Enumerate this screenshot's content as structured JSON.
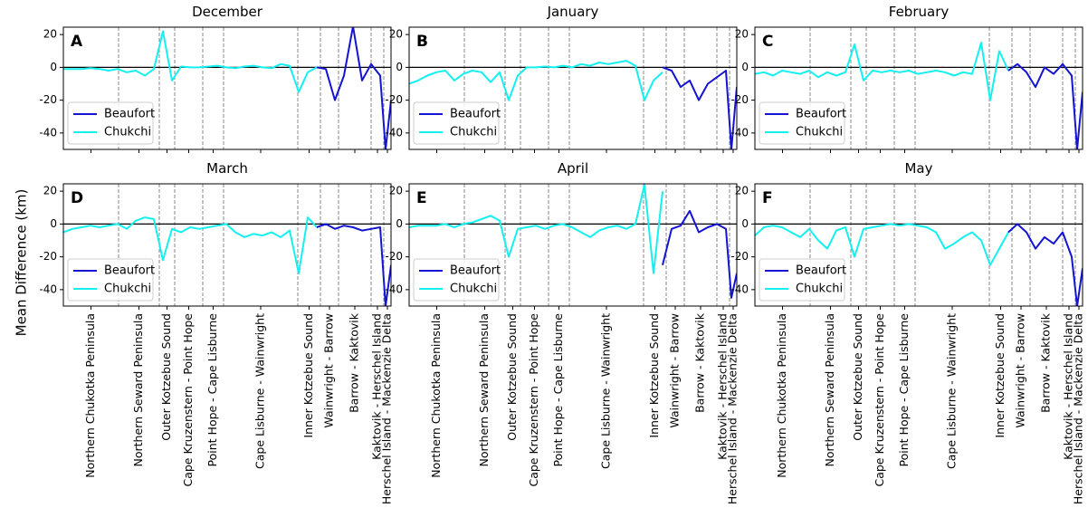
{
  "figure": {
    "ylabel": "Mean Difference (km)"
  },
  "axes": {
    "xlim": [
      0,
      362
    ],
    "ylim": [
      -50,
      24.5
    ],
    "yticks": [
      -40,
      -20,
      0,
      20
    ],
    "hline": 0,
    "boundaries": [
      0,
      61,
      106,
      123,
      154,
      177,
      259,
      284,
      304,
      340,
      354,
      362
    ],
    "regions": [
      "Northern Chukotka Peninsula",
      "Northern Seward Peninsula",
      "Outer Kotzebue Sound",
      "Cape Kruzenstern - Point Hope",
      "Point Hope - Cape Lisburne",
      "Cape Lisburne - Wainwright",
      "Inner Kotzebue Sound",
      "Wainwright - Barrow",
      "Barrow - Kaktovik",
      "Kaktovik - Herschel Island",
      "Herschel Island - Mackenzie Delta"
    ]
  },
  "chart_data": [
    {
      "type": "line",
      "title": "December",
      "label": "A",
      "series": [
        {
          "name": "Beaufort",
          "color": "#1414d2",
          "x": [
            280,
            290,
            300,
            310,
            320,
            330,
            340,
            350,
            356,
            362
          ],
          "values": [
            0,
            -1,
            -20,
            -5,
            25,
            -8,
            2,
            -5,
            -50,
            -20
          ]
        },
        {
          "name": "Chukchi",
          "color": "#14f0f0",
          "x": [
            0,
            10,
            20,
            30,
            40,
            50,
            60,
            70,
            80,
            90,
            100,
            110,
            120,
            130,
            140,
            150,
            160,
            170,
            180,
            190,
            200,
            210,
            220,
            230,
            240,
            250,
            260,
            270,
            280
          ],
          "values": [
            -1,
            -1,
            -1,
            -0.5,
            -1,
            -2,
            -1,
            -3,
            -2,
            -5,
            -1,
            22,
            -8,
            0.5,
            0,
            0,
            0.5,
            1,
            0,
            -0.5,
            0.5,
            1,
            0,
            -0.5,
            2,
            1,
            -15,
            -3,
            0
          ]
        }
      ]
    },
    {
      "type": "line",
      "title": "January",
      "label": "B",
      "series": [
        {
          "name": "Beaufort",
          "color": "#1414d2",
          "x": [
            280,
            290,
            300,
            310,
            320,
            330,
            340,
            350,
            356,
            362
          ],
          "values": [
            0,
            -2,
            -12,
            -8,
            -20,
            -10,
            -6,
            -2,
            -50,
            -12
          ]
        },
        {
          "name": "Chukchi",
          "color": "#14f0f0",
          "x": [
            0,
            10,
            20,
            30,
            40,
            50,
            60,
            70,
            80,
            90,
            100,
            110,
            120,
            130,
            140,
            150,
            160,
            170,
            180,
            190,
            200,
            210,
            220,
            230,
            240,
            250,
            260,
            270,
            280
          ],
          "values": [
            -10,
            -8,
            -5,
            -3,
            -2,
            -8,
            -4,
            -2,
            -3,
            -9,
            -3,
            -20,
            -5,
            0,
            0,
            0.5,
            0,
            1,
            0,
            2,
            1,
            3,
            2,
            3,
            4,
            1,
            -20,
            -8,
            -3
          ]
        }
      ]
    },
    {
      "type": "line",
      "title": "February",
      "label": "C",
      "series": [
        {
          "name": "Beaufort",
          "color": "#1414d2",
          "x": [
            280,
            290,
            300,
            310,
            320,
            330,
            340,
            350,
            356,
            362
          ],
          "values": [
            -2,
            2,
            -3,
            -12,
            0,
            -4,
            2,
            -5,
            -50,
            -15
          ]
        },
        {
          "name": "Chukchi",
          "color": "#14f0f0",
          "x": [
            0,
            10,
            20,
            30,
            40,
            50,
            60,
            70,
            80,
            90,
            100,
            110,
            120,
            130,
            140,
            150,
            160,
            170,
            180,
            190,
            200,
            210,
            220,
            230,
            240,
            250,
            260,
            270,
            280
          ],
          "values": [
            -4,
            -3,
            -5,
            -2,
            -3,
            -4,
            -2,
            -6,
            -3,
            -5,
            -3,
            14,
            -8,
            -2,
            -3,
            -2,
            -3,
            -2,
            -4,
            -3,
            -2,
            -3,
            -5,
            -3,
            -4,
            15,
            -20,
            10,
            -2
          ]
        }
      ]
    },
    {
      "type": "line",
      "title": "March",
      "label": "D",
      "series": [
        {
          "name": "Beaufort",
          "color": "#1414d2",
          "x": [
            280,
            290,
            300,
            310,
            320,
            330,
            340,
            350,
            356,
            362
          ],
          "values": [
            -2,
            0,
            -3,
            -1,
            -2,
            -4,
            -3,
            -2,
            -50,
            -25
          ]
        },
        {
          "name": "Chukchi",
          "color": "#14f0f0",
          "x": [
            0,
            10,
            20,
            30,
            40,
            50,
            60,
            70,
            80,
            90,
            100,
            110,
            120,
            130,
            140,
            150,
            160,
            170,
            180,
            190,
            200,
            210,
            220,
            230,
            240,
            250,
            260,
            270,
            280
          ],
          "values": [
            -5,
            -3,
            -2,
            -1,
            -2,
            -1,
            0,
            -3,
            2,
            4,
            3,
            -22,
            -3,
            -5,
            -2,
            -3,
            -2,
            -1,
            0,
            -5,
            -8,
            -6,
            -7,
            -5,
            -8,
            -4,
            -30,
            4,
            -2
          ]
        }
      ]
    },
    {
      "type": "line",
      "title": "April",
      "label": "E",
      "series": [
        {
          "name": "Beaufort",
          "color": "#1414d2",
          "x": [
            280,
            290,
            300,
            310,
            320,
            330,
            340,
            350,
            356,
            362
          ],
          "values": [
            -25,
            -3,
            -1,
            8,
            -5,
            -2,
            0,
            -3,
            -45,
            -30
          ]
        },
        {
          "name": "Chukchi",
          "color": "#14f0f0",
          "x": [
            0,
            10,
            20,
            30,
            40,
            50,
            60,
            70,
            80,
            90,
            100,
            110,
            120,
            130,
            140,
            150,
            160,
            170,
            180,
            190,
            200,
            210,
            220,
            230,
            240,
            250,
            260,
            270,
            280
          ],
          "values": [
            -2,
            -1,
            -1,
            -1,
            0,
            -2,
            0,
            1,
            3,
            5,
            2,
            -20,
            -3,
            -2,
            -1,
            -3,
            -1,
            0,
            -2,
            -5,
            -8,
            -4,
            -2,
            -1,
            -3,
            0,
            24,
            -30,
            20
          ]
        }
      ]
    },
    {
      "type": "line",
      "title": "May",
      "label": "F",
      "series": [
        {
          "name": "Beaufort",
          "color": "#1414d2",
          "x": [
            280,
            290,
            300,
            310,
            320,
            330,
            340,
            350,
            356,
            362
          ],
          "values": [
            -5,
            0,
            -5,
            -15,
            -8,
            -12,
            -5,
            -20,
            -50,
            -27
          ]
        },
        {
          "name": "Chukchi",
          "color": "#14f0f0",
          "x": [
            0,
            10,
            20,
            30,
            40,
            50,
            60,
            70,
            80,
            90,
            100,
            110,
            120,
            130,
            140,
            150,
            160,
            170,
            180,
            190,
            200,
            210,
            220,
            230,
            240,
            250,
            260,
            270,
            280
          ],
          "values": [
            -7,
            -2,
            -1,
            -2,
            -5,
            -8,
            -3,
            -10,
            -15,
            -4,
            -2,
            -20,
            -3,
            -2,
            -1,
            0,
            -1,
            0,
            -1,
            -2,
            -5,
            -15,
            -12,
            -8,
            -5,
            -10,
            -25,
            -15,
            -5
          ]
        }
      ]
    }
  ]
}
